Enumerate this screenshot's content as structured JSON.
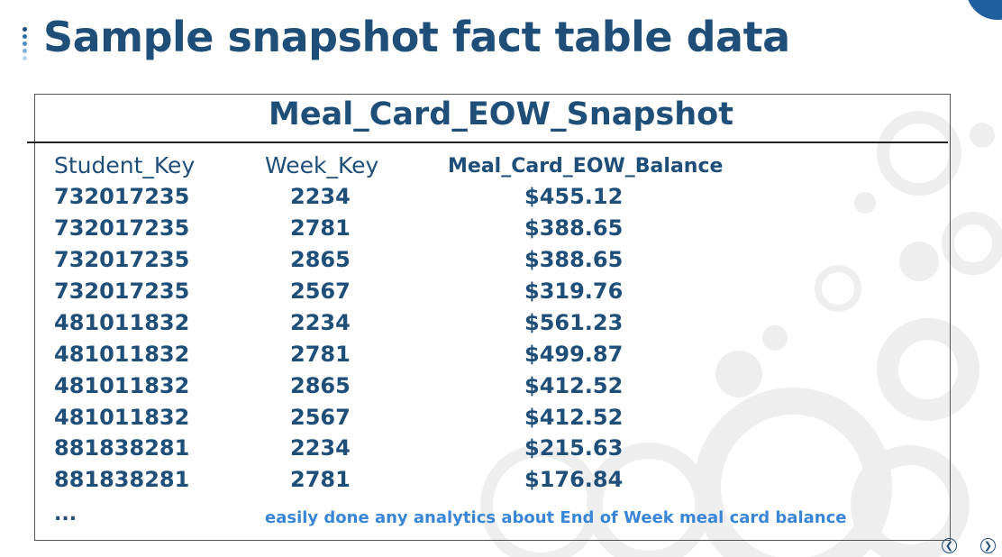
{
  "slide": {
    "title": "Sample snapshot fact table data",
    "accent_color": "#1f4e79",
    "note_color": "#3a86d6"
  },
  "table": {
    "title": "Meal_Card_EOW_Snapshot",
    "headers": [
      "Student_Key",
      "Week_Key",
      "Meal_Card_EOW_Balance"
    ],
    "rows": [
      [
        "732017235",
        "2234",
        "$455.12"
      ],
      [
        "732017235",
        "2781",
        "$388.65"
      ],
      [
        "732017235",
        "2865",
        "$388.65"
      ],
      [
        "732017235",
        "2567",
        "$319.76"
      ],
      [
        "481011832",
        "2234",
        "$561.23"
      ],
      [
        "481011832",
        "2781",
        "$499.87"
      ],
      [
        "481011832",
        "2865",
        "$412.52"
      ],
      [
        "481011832",
        "2567",
        "$412.52"
      ],
      [
        "881838281",
        "2234",
        "$215.63"
      ],
      [
        "881838281",
        "2781",
        "$176.84"
      ]
    ],
    "ellipsis": "...",
    "note": "easily done any analytics about End of Week meal card balance"
  },
  "nav": {
    "prev_icon": "chevron-left-icon",
    "next_icon": "chevron-right-icon"
  }
}
